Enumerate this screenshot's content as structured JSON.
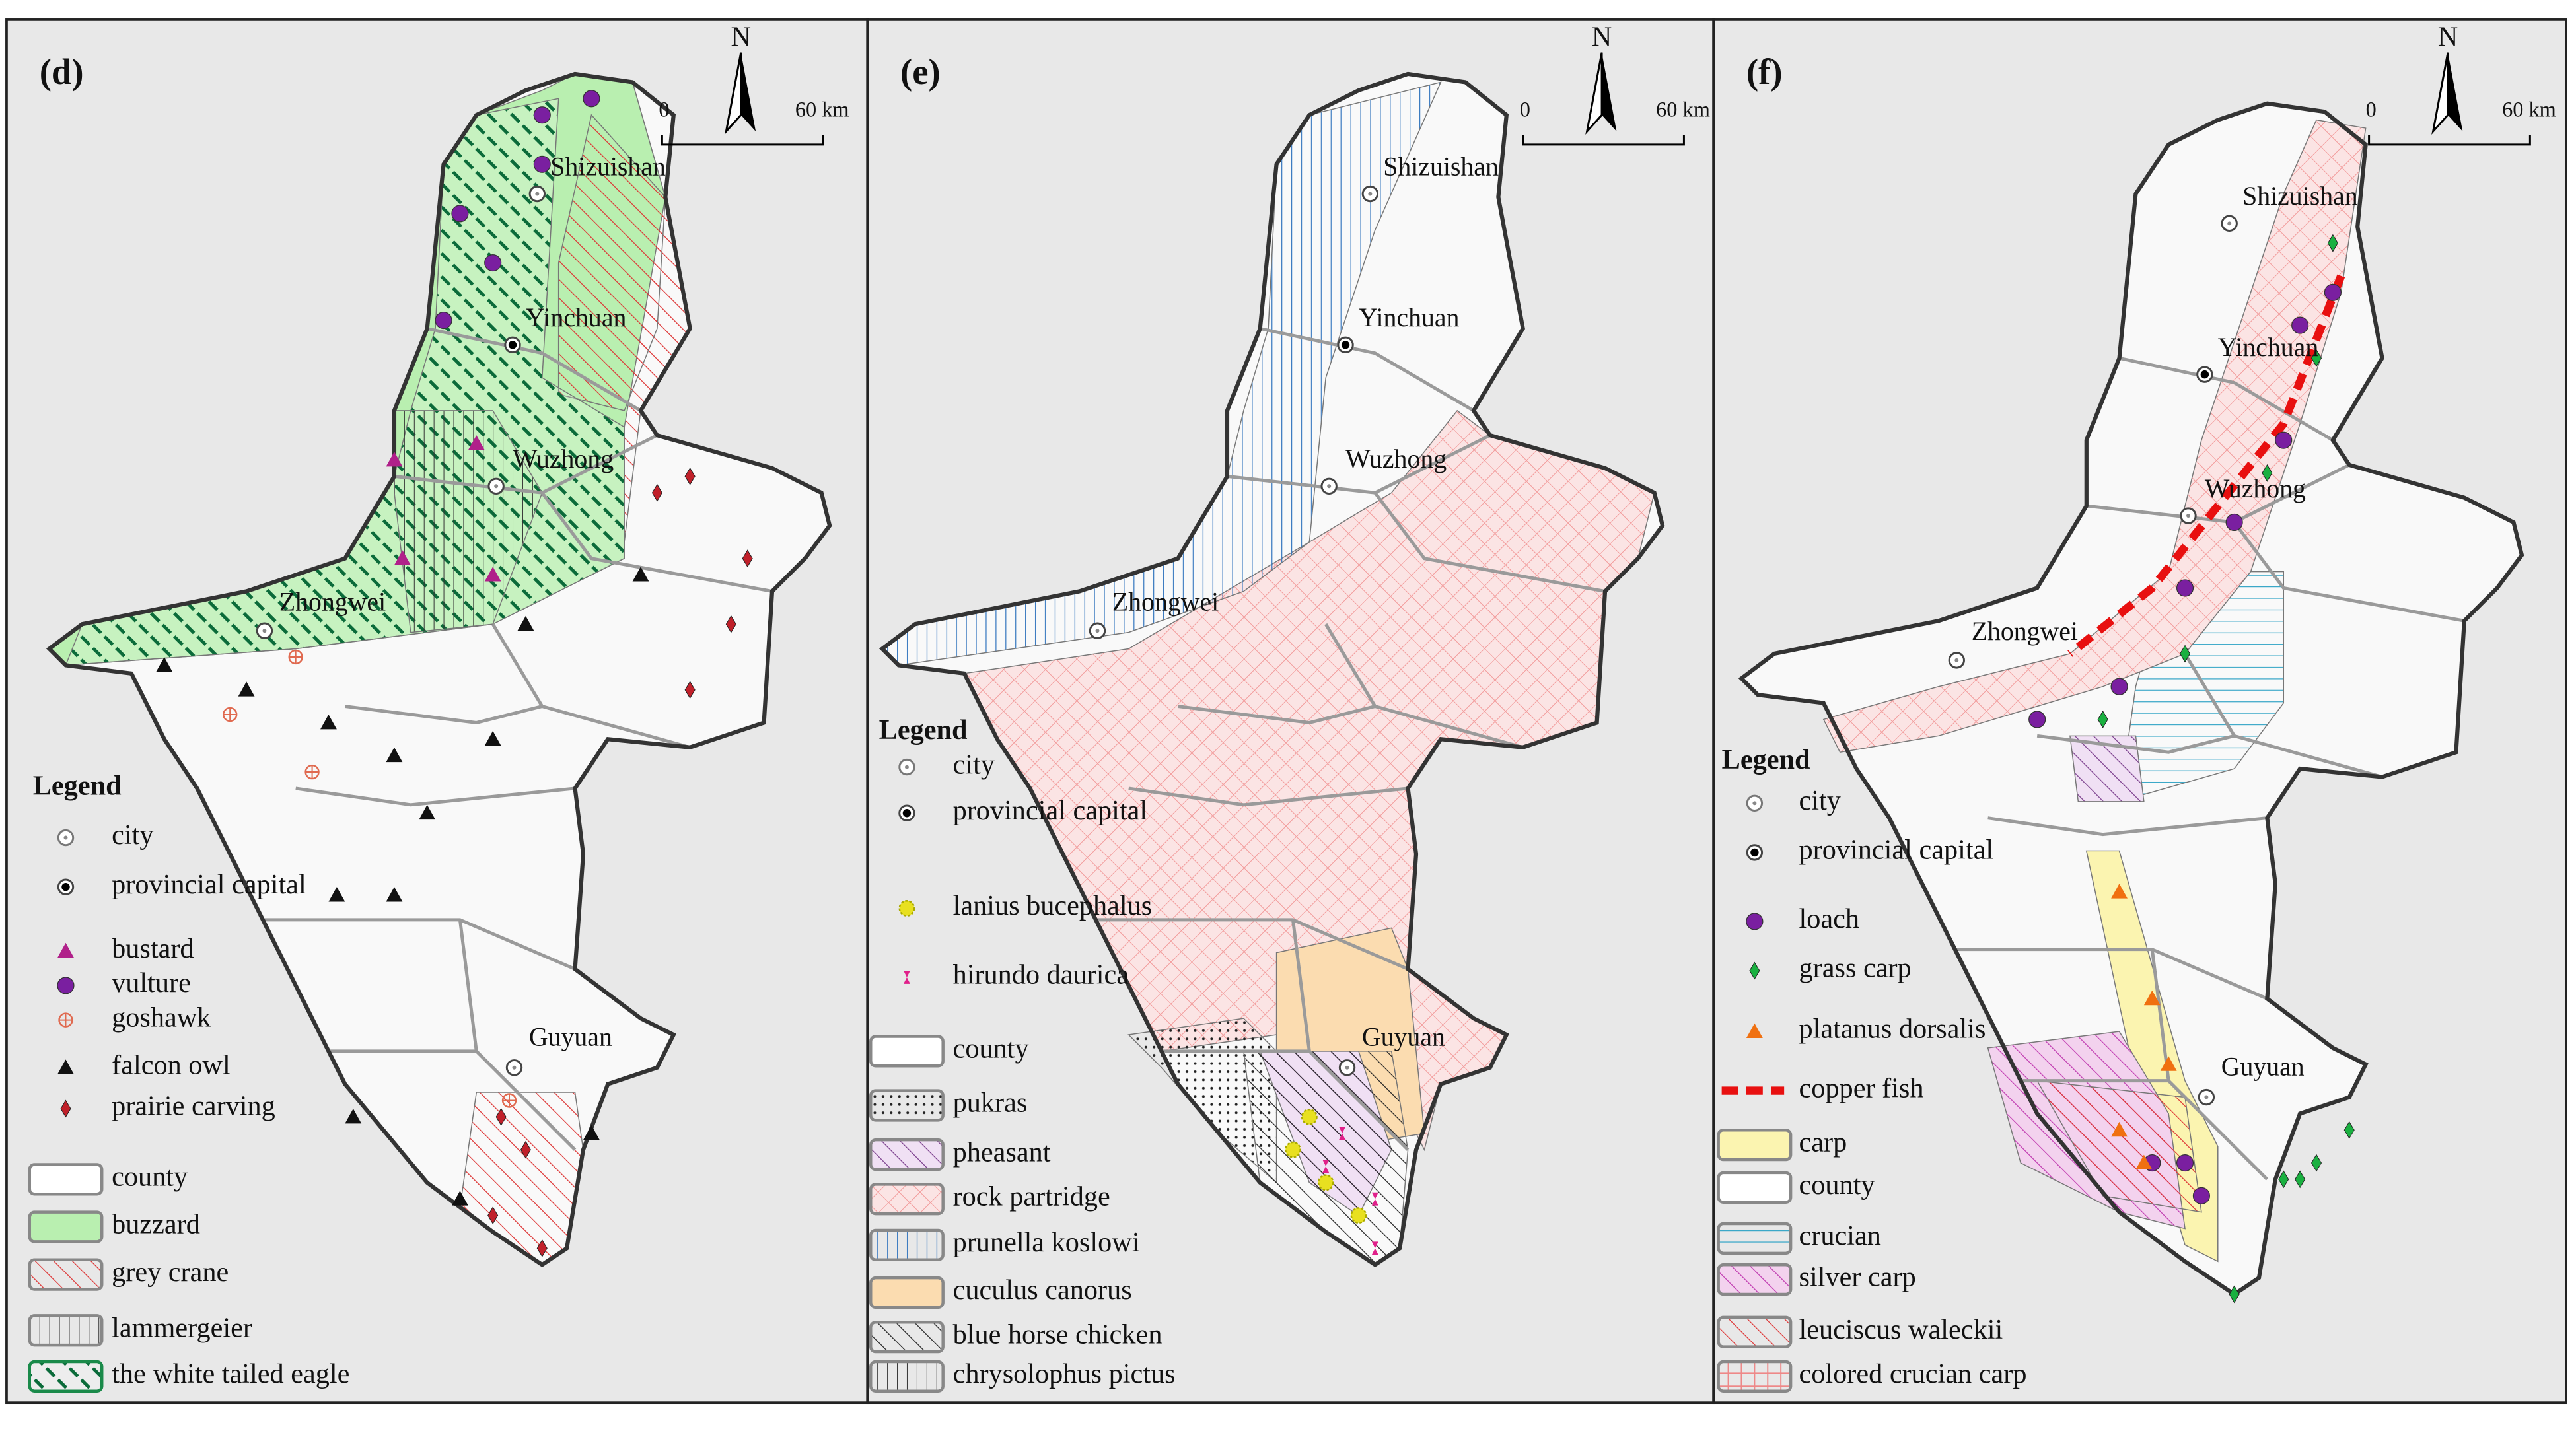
{
  "panels": [
    {
      "label": "(d)",
      "north": "N",
      "scale": [
        "0",
        "60 km"
      ],
      "cities": [
        "Shizuishan",
        "Yinchuan",
        "Wuzhong",
        "Zhongwei",
        "Guyuan"
      ],
      "legend_title": "Legend",
      "legend": [
        "city",
        "provincial capital",
        "bustard",
        "vulture",
        "goshawk",
        "falcon owl",
        "prairie carving",
        "county",
        "buzzard",
        "grey crane",
        "lammergeier",
        "the white tailed eagle"
      ]
    },
    {
      "label": "(e)",
      "north": "N",
      "scale": [
        "0",
        "60 km"
      ],
      "cities": [
        "Shizuishan",
        "Yinchuan",
        "Wuzhong",
        "Zhongwei",
        "Guyuan"
      ],
      "legend_title": "Legend",
      "legend": [
        "city",
        "provincial capital",
        "lanius bucephalus",
        "hirundo daurica",
        "county",
        "pukras",
        "pheasant",
        "rock partridge",
        "prunella koslowi",
        "cuculus canorus",
        "blue horse chicken",
        "chrysolophus pictus"
      ]
    },
    {
      "label": "(f)",
      "north": "N",
      "scale": [
        "0",
        "60 km"
      ],
      "cities": [
        "Shizuishan",
        "Yinchuan",
        "Wuzhong",
        "Zhongwei",
        "Guyuan"
      ],
      "legend_title": "Legend",
      "legend": [
        "city",
        "provincial capital",
        "loach",
        "grass carp",
        "platanus dorsalis",
        "copper fish",
        "carp",
        "county",
        "crucian",
        "silver carp",
        "leuciscus waleckii",
        "colored crucian carp"
      ]
    }
  ]
}
